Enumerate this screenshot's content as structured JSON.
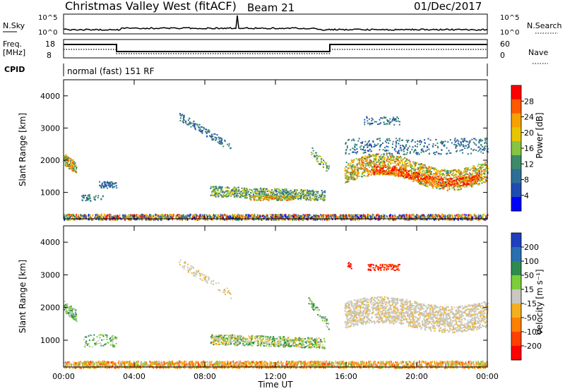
{
  "header": {
    "title": "Christmas Valley West (fitACF)",
    "beam": "Beam 21",
    "date": "01/Dec/2017"
  },
  "strips": {
    "nsky_label": "N.Sky",
    "nsky_ticks": [
      "10^5",
      "10^0"
    ],
    "nsearch_label": "N.Search",
    "nsearch_ticks": [
      "10^5",
      "10^0"
    ],
    "freq_label_1": "Freq.",
    "freq_label_2": "[MHz]",
    "freq_ticks": [
      "18",
      "8"
    ],
    "nave_label": "Nave",
    "nave_ticks": [
      "60",
      "0"
    ],
    "cpid_label": "CPID",
    "cpid_text": "normal (fast) 151 RF"
  },
  "chart_data": [
    {
      "type": "heatmap",
      "name": "power-panel",
      "ylabel": "Slant Range [km]",
      "xlabel": "",
      "y_ticks": [
        "4000",
        "3000",
        "2000",
        "1000"
      ],
      "y_tick_values": [
        4000,
        3000,
        2000,
        1000
      ],
      "ylim": [
        180,
        4500
      ],
      "xlim": [
        0,
        24
      ],
      "colorbar_label": "Power [dB]",
      "colorbar_ticks": [
        "28",
        "24",
        "20",
        "16",
        "12",
        "8",
        "4"
      ],
      "colorbar_colors": [
        "#ff0000",
        "#ff5a00",
        "#f7a100",
        "#e6c400",
        "#86c441",
        "#3d8a6a",
        "#2e6f96",
        "#204bb0",
        "#0000ff"
      ]
    },
    {
      "type": "heatmap",
      "name": "velocity-panel",
      "ylabel": "Slant Range [km]",
      "xlabel": "Time UT",
      "y_ticks": [
        "4000",
        "3000",
        "2000",
        "1000"
      ],
      "y_tick_values": [
        4000,
        3000,
        2000,
        1000
      ],
      "ylim": [
        180,
        4500
      ],
      "xlim": [
        0,
        24
      ],
      "x_ticks": [
        "00:00",
        "04:00",
        "08:00",
        "12:00",
        "16:00",
        "20:00",
        "00:00"
      ],
      "x_tick_values": [
        0,
        4,
        8,
        12,
        16,
        20,
        24
      ],
      "colorbar_label": "Velocity [m s⁻¹]",
      "colorbar_ticks": [
        "200",
        "100",
        "50",
        "15",
        "-15",
        "-50",
        "-100",
        "-200"
      ],
      "colorbar_colors": [
        "#1f3fbf",
        "#2a6fb0",
        "#2e8b4f",
        "#7ccd3a",
        "#c8c8c0",
        "#f2b020",
        "#ff8000",
        "#ff4000",
        "#ff0000"
      ]
    }
  ]
}
